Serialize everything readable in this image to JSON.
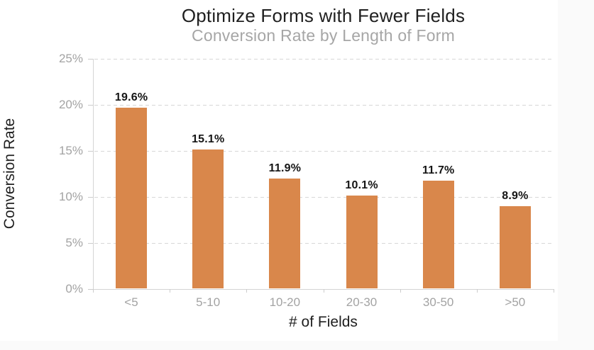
{
  "chart_data": {
    "type": "bar",
    "title": "Optimize Forms with Fewer Fields",
    "subtitle": "Conversion Rate by Length of Form",
    "categories": [
      "<5",
      "5-10",
      "10-20",
      "20-30",
      "30-50",
      ">50"
    ],
    "values": [
      19.6,
      15.1,
      11.9,
      10.1,
      11.7,
      8.9
    ],
    "data_labels": [
      "19.6%",
      "15.1%",
      "11.9%",
      "10.1%",
      "11.7%",
      "8.9%"
    ],
    "xlabel": "# of Fields",
    "ylabel": "Conversion Rate",
    "ylim": [
      0,
      25
    ],
    "ytick_step": 5,
    "ytick_labels": [
      "0%",
      "5%",
      "10%",
      "15%",
      "20%",
      "25%"
    ],
    "legend": "none",
    "grid": "horizontal-dashed",
    "bar_color": "#d9874b"
  },
  "colors": {
    "bar": "#d9874b",
    "title_text": "#1f1f1f",
    "subtitle_text": "#a6a6a6",
    "axis_label_text": "#a3a3a3",
    "axis_line": "#d4d4d4",
    "gridline": "#d7d7d7",
    "background": "#ffffff"
  }
}
